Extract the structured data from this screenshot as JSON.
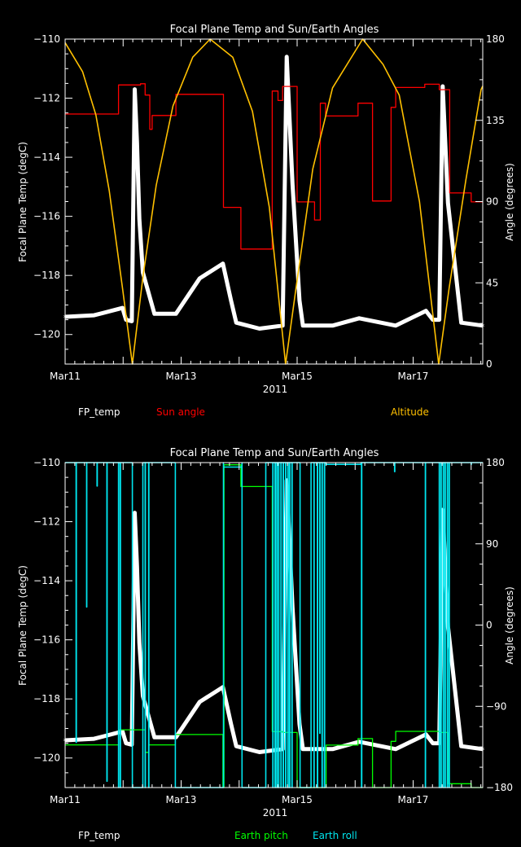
{
  "chart_data": [
    {
      "type": "line",
      "title": "Focal Plane Temp and Sun/Earth Angles",
      "xlabel": "2011",
      "ylabel": "Focal Plane Temp (degC)",
      "y2label": "Angle (degrees)",
      "xlim": [
        0,
        7.2
      ],
      "x_unit": "days since Mar 11 2011",
      "ylim": [
        -121,
        -110
      ],
      "y2lim": [
        0,
        180
      ],
      "xticks": [
        {
          "v": 0,
          "label": "Mar11"
        },
        {
          "v": 2,
          "label": "Mar13"
        },
        {
          "v": 4,
          "label": "Mar15"
        },
        {
          "v": 6,
          "label": "Mar17"
        }
      ],
      "yticks": [
        {
          "v": -120,
          "label": "−120"
        },
        {
          "v": -118,
          "label": "−118"
        },
        {
          "v": -116,
          "label": "−116"
        },
        {
          "v": -114,
          "label": "−114"
        },
        {
          "v": -112,
          "label": "−112"
        },
        {
          "v": -110,
          "label": "−110"
        }
      ],
      "y2ticks": [
        {
          "v": 0,
          "label": "0"
        },
        {
          "v": 45,
          "label": "45"
        },
        {
          "v": 90,
          "label": "90"
        },
        {
          "v": 135,
          "label": "135"
        },
        {
          "v": 180,
          "label": "180"
        }
      ],
      "series": [
        {
          "name": "FP_temp",
          "axis": "left",
          "color": "#ffffff",
          "points": [
            [
              0,
              -119.4
            ],
            [
              0.5,
              -119.35
            ],
            [
              0.99,
              -119.1
            ],
            [
              1.05,
              -119.5
            ],
            [
              1.15,
              -119.55
            ],
            [
              1.2,
              -111.7
            ],
            [
              1.24,
              -113.5
            ],
            [
              1.28,
              -116.1
            ],
            [
              1.34,
              -117.9
            ],
            [
              1.54,
              -119.3
            ],
            [
              1.91,
              -119.3
            ],
            [
              2.32,
              -118.1
            ],
            [
              2.72,
              -117.6
            ],
            [
              2.86,
              -118.85
            ],
            [
              2.95,
              -119.6
            ],
            [
              3.35,
              -119.8
            ],
            [
              3.75,
              -119.7
            ],
            [
              3.82,
              -110.6
            ],
            [
              3.92,
              -114.9
            ],
            [
              4.04,
              -118.85
            ],
            [
              4.1,
              -119.7
            ],
            [
              4.61,
              -119.7
            ],
            [
              5.07,
              -119.45
            ],
            [
              5.7,
              -119.7
            ],
            [
              6.22,
              -119.2
            ],
            [
              6.34,
              -119.5
            ],
            [
              6.45,
              -119.5
            ],
            [
              6.51,
              -111.6
            ],
            [
              6.6,
              -115.55
            ],
            [
              6.83,
              -119.6
            ],
            [
              7.2,
              -119.7
            ]
          ]
        },
        {
          "name": "Sun angle",
          "axis": "right",
          "color": "#ff0000",
          "step": true,
          "points": [
            [
              0,
              138.5
            ],
            [
              0.92,
              154.6
            ],
            [
              1.3,
              155.3
            ],
            [
              1.38,
              149
            ],
            [
              1.46,
              130
            ],
            [
              1.5,
              137.7
            ],
            [
              1.91,
              149.4
            ],
            [
              2.73,
              86.8
            ],
            [
              3.03,
              63.7
            ],
            [
              3.57,
              151.2
            ],
            [
              3.67,
              146
            ],
            [
              3.75,
              153.8
            ],
            [
              4.0,
              89.8
            ],
            [
              4.3,
              79.8
            ],
            [
              4.4,
              144.5
            ],
            [
              4.49,
              137.4
            ],
            [
              5.05,
              144.5
            ],
            [
              5.3,
              90.3
            ],
            [
              5.62,
              142.2
            ],
            [
              5.7,
              153.2
            ],
            [
              6.2,
              155
            ],
            [
              6.45,
              152
            ],
            [
              6.63,
              94.8
            ],
            [
              7.0,
              89.8
            ],
            [
              7.2,
              89.8
            ]
          ]
        },
        {
          "name": "Altitude",
          "axis": "right",
          "color": "#ffc000",
          "points": [
            [
              0,
              178
            ],
            [
              0.3,
              162
            ],
            [
              0.53,
              138
            ],
            [
              0.76,
              96
            ],
            [
              0.99,
              42
            ],
            [
              1.16,
              0
            ],
            [
              1.34,
              48
            ],
            [
              1.57,
              99
            ],
            [
              1.86,
              143
            ],
            [
              2.2,
              170
            ],
            [
              2.5,
              180
            ],
            [
              2.89,
              170
            ],
            [
              3.23,
              140
            ],
            [
              3.52,
              87
            ],
            [
              3.8,
              0
            ],
            [
              3.98,
              42
            ],
            [
              4.27,
              108
            ],
            [
              4.61,
              153
            ],
            [
              5.13,
              180
            ],
            [
              5.48,
              166
            ],
            [
              5.76,
              149
            ],
            [
              6.11,
              90
            ],
            [
              6.44,
              0
            ],
            [
              6.62,
              42
            ],
            [
              6.91,
              102
            ],
            [
              7.17,
              152
            ],
            [
              7.2,
              154
            ]
          ]
        }
      ],
      "legend": "bottom"
    },
    {
      "type": "line",
      "title": "Focal Plane Temp and Sun/Earth Angles",
      "xlabel": "2011",
      "ylabel": "Focal Plane Temp (degC)",
      "y2label": "Angle (degrees)",
      "xlim": [
        0,
        7.2
      ],
      "x_unit": "days since Mar 11 2011",
      "ylim": [
        -121,
        -110
      ],
      "y2lim": [
        -180,
        180
      ],
      "xticks": [
        {
          "v": 0,
          "label": "Mar11"
        },
        {
          "v": 2,
          "label": "Mar13"
        },
        {
          "v": 4,
          "label": "Mar15"
        },
        {
          "v": 6,
          "label": "Mar17"
        }
      ],
      "yticks": [
        {
          "v": -120,
          "label": "−120"
        },
        {
          "v": -118,
          "label": "−118"
        },
        {
          "v": -116,
          "label": "−116"
        },
        {
          "v": -114,
          "label": "−114"
        },
        {
          "v": -112,
          "label": "−112"
        },
        {
          "v": -110,
          "label": "−110"
        }
      ],
      "y2ticks": [
        {
          "v": -180,
          "label": "−180"
        },
        {
          "v": -90,
          "label": "−90"
        },
        {
          "v": 0,
          "label": "0"
        },
        {
          "v": 90,
          "label": "90"
        },
        {
          "v": 180,
          "label": "180"
        }
      ],
      "series": [
        {
          "name": "FP_temp",
          "axis": "left",
          "color": "#ffffff",
          "points": [
            [
              0,
              -119.4
            ],
            [
              0.5,
              -119.35
            ],
            [
              0.99,
              -119.1
            ],
            [
              1.05,
              -119.5
            ],
            [
              1.15,
              -119.55
            ],
            [
              1.2,
              -111.7
            ],
            [
              1.24,
              -113.5
            ],
            [
              1.28,
              -116.1
            ],
            [
              1.34,
              -117.9
            ],
            [
              1.54,
              -119.3
            ],
            [
              1.91,
              -119.3
            ],
            [
              2.32,
              -118.1
            ],
            [
              2.72,
              -117.6
            ],
            [
              2.86,
              -118.85
            ],
            [
              2.95,
              -119.6
            ],
            [
              3.35,
              -119.8
            ],
            [
              3.75,
              -119.7
            ],
            [
              3.82,
              -110.6
            ],
            [
              3.92,
              -114.9
            ],
            [
              4.04,
              -118.85
            ],
            [
              4.1,
              -119.7
            ],
            [
              4.61,
              -119.7
            ],
            [
              5.07,
              -119.45
            ],
            [
              5.7,
              -119.7
            ],
            [
              6.22,
              -119.2
            ],
            [
              6.34,
              -119.5
            ],
            [
              6.45,
              -119.5
            ],
            [
              6.51,
              -111.6
            ],
            [
              6.6,
              -115.55
            ],
            [
              6.83,
              -119.6
            ],
            [
              7.2,
              -119.7
            ]
          ]
        },
        {
          "name": "Earth pitch",
          "axis": "right",
          "color": "#00ff00",
          "step": true,
          "points": [
            [
              0,
              -132.7
            ],
            [
              0.92,
              -116
            ],
            [
              1.38,
              -141
            ],
            [
              1.44,
              -132.7
            ],
            [
              1.9,
              -121.3
            ],
            [
              2.72,
              -180
            ],
            [
              2.74,
              177.6
            ],
            [
              3.03,
              153.5
            ],
            [
              3.57,
              -118
            ],
            [
              3.75,
              -119
            ],
            [
              4.0,
              -180
            ],
            [
              4.5,
              -133
            ],
            [
              5.05,
              -125.8
            ],
            [
              5.3,
              -180
            ],
            [
              5.62,
              -128.8
            ],
            [
              5.7,
              -117.7
            ],
            [
              6.45,
              -119
            ],
            [
              6.6,
              -175.8
            ],
            [
              7.0,
              -180
            ],
            [
              7.2,
              -180
            ]
          ]
        },
        {
          "name": "Earth roll",
          "axis": "right",
          "color": "#00e5ee",
          "baseline": 180,
          "low_intervals": [
            [
              1.16,
              1.34
            ],
            [
              1.9,
              2.73
            ],
            [
              3.05,
              3.46
            ],
            [
              4.05,
              4.24
            ]
          ],
          "high_intervals_value": [
            [
              2.73,
              3.05,
              175
            ],
            [
              4.5,
              5.1,
              178
            ]
          ],
          "spikes": [
            [
              0.19,
              -130
            ],
            [
              0.37,
              20
            ],
            [
              0.55,
              154
            ],
            [
              0.72,
              -173
            ],
            [
              0.92,
              -180
            ],
            [
              0.95,
              -180
            ],
            [
              1.38,
              -180
            ],
            [
              1.44,
              -180
            ],
            [
              3.58,
              -180
            ],
            [
              3.62,
              -180
            ],
            [
              3.65,
              -180
            ],
            [
              3.68,
              -180
            ],
            [
              3.72,
              -180
            ],
            [
              3.76,
              -180
            ],
            [
              3.8,
              -180
            ],
            [
              3.84,
              -180
            ],
            [
              3.87,
              -180
            ],
            [
              3.91,
              -180
            ],
            [
              4.29,
              -180
            ],
            [
              4.35,
              -180
            ],
            [
              4.39,
              -120
            ],
            [
              4.43,
              -180
            ],
            [
              4.47,
              -180
            ],
            [
              5.11,
              -180
            ],
            [
              5.68,
              170
            ],
            [
              6.21,
              -180
            ],
            [
              6.45,
              -180
            ],
            [
              6.48,
              -180
            ],
            [
              6.52,
              -180
            ],
            [
              6.55,
              -180
            ],
            [
              6.59,
              -180
            ],
            [
              6.62,
              -180
            ],
            [
              7.0,
              178
            ]
          ]
        }
      ],
      "legend": "bottom"
    }
  ]
}
